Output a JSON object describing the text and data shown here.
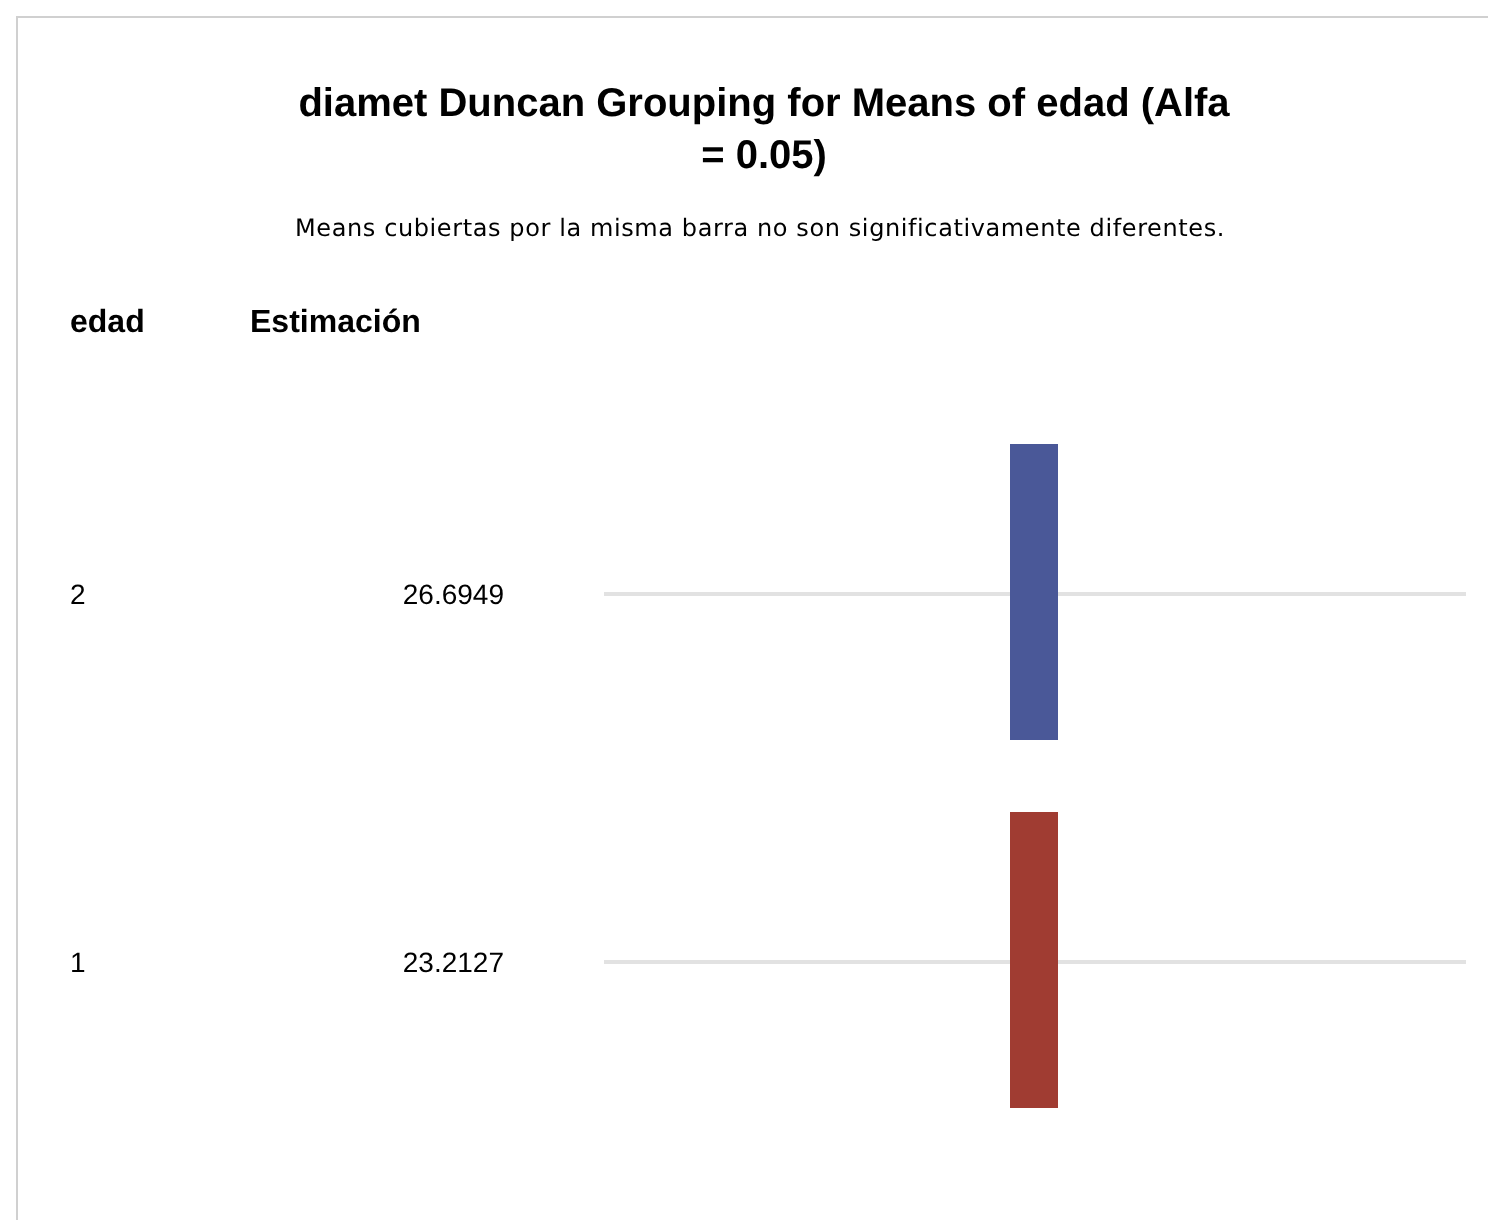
{
  "chart_data": {
    "type": "other",
    "title": "diamet Duncan Grouping for Means of edad (Alfa = 0.05)",
    "subtitle": "Means cubiertas por la misma barra no son significativamente diferentes.",
    "ylabel": "edad",
    "xlabel": "Estimación",
    "categories": [
      "2",
      "1"
    ],
    "values": [
      26.6949,
      23.2127
    ],
    "colors": [
      "#4a5898",
      "#a03c32"
    ],
    "data_labels": true
  }
}
